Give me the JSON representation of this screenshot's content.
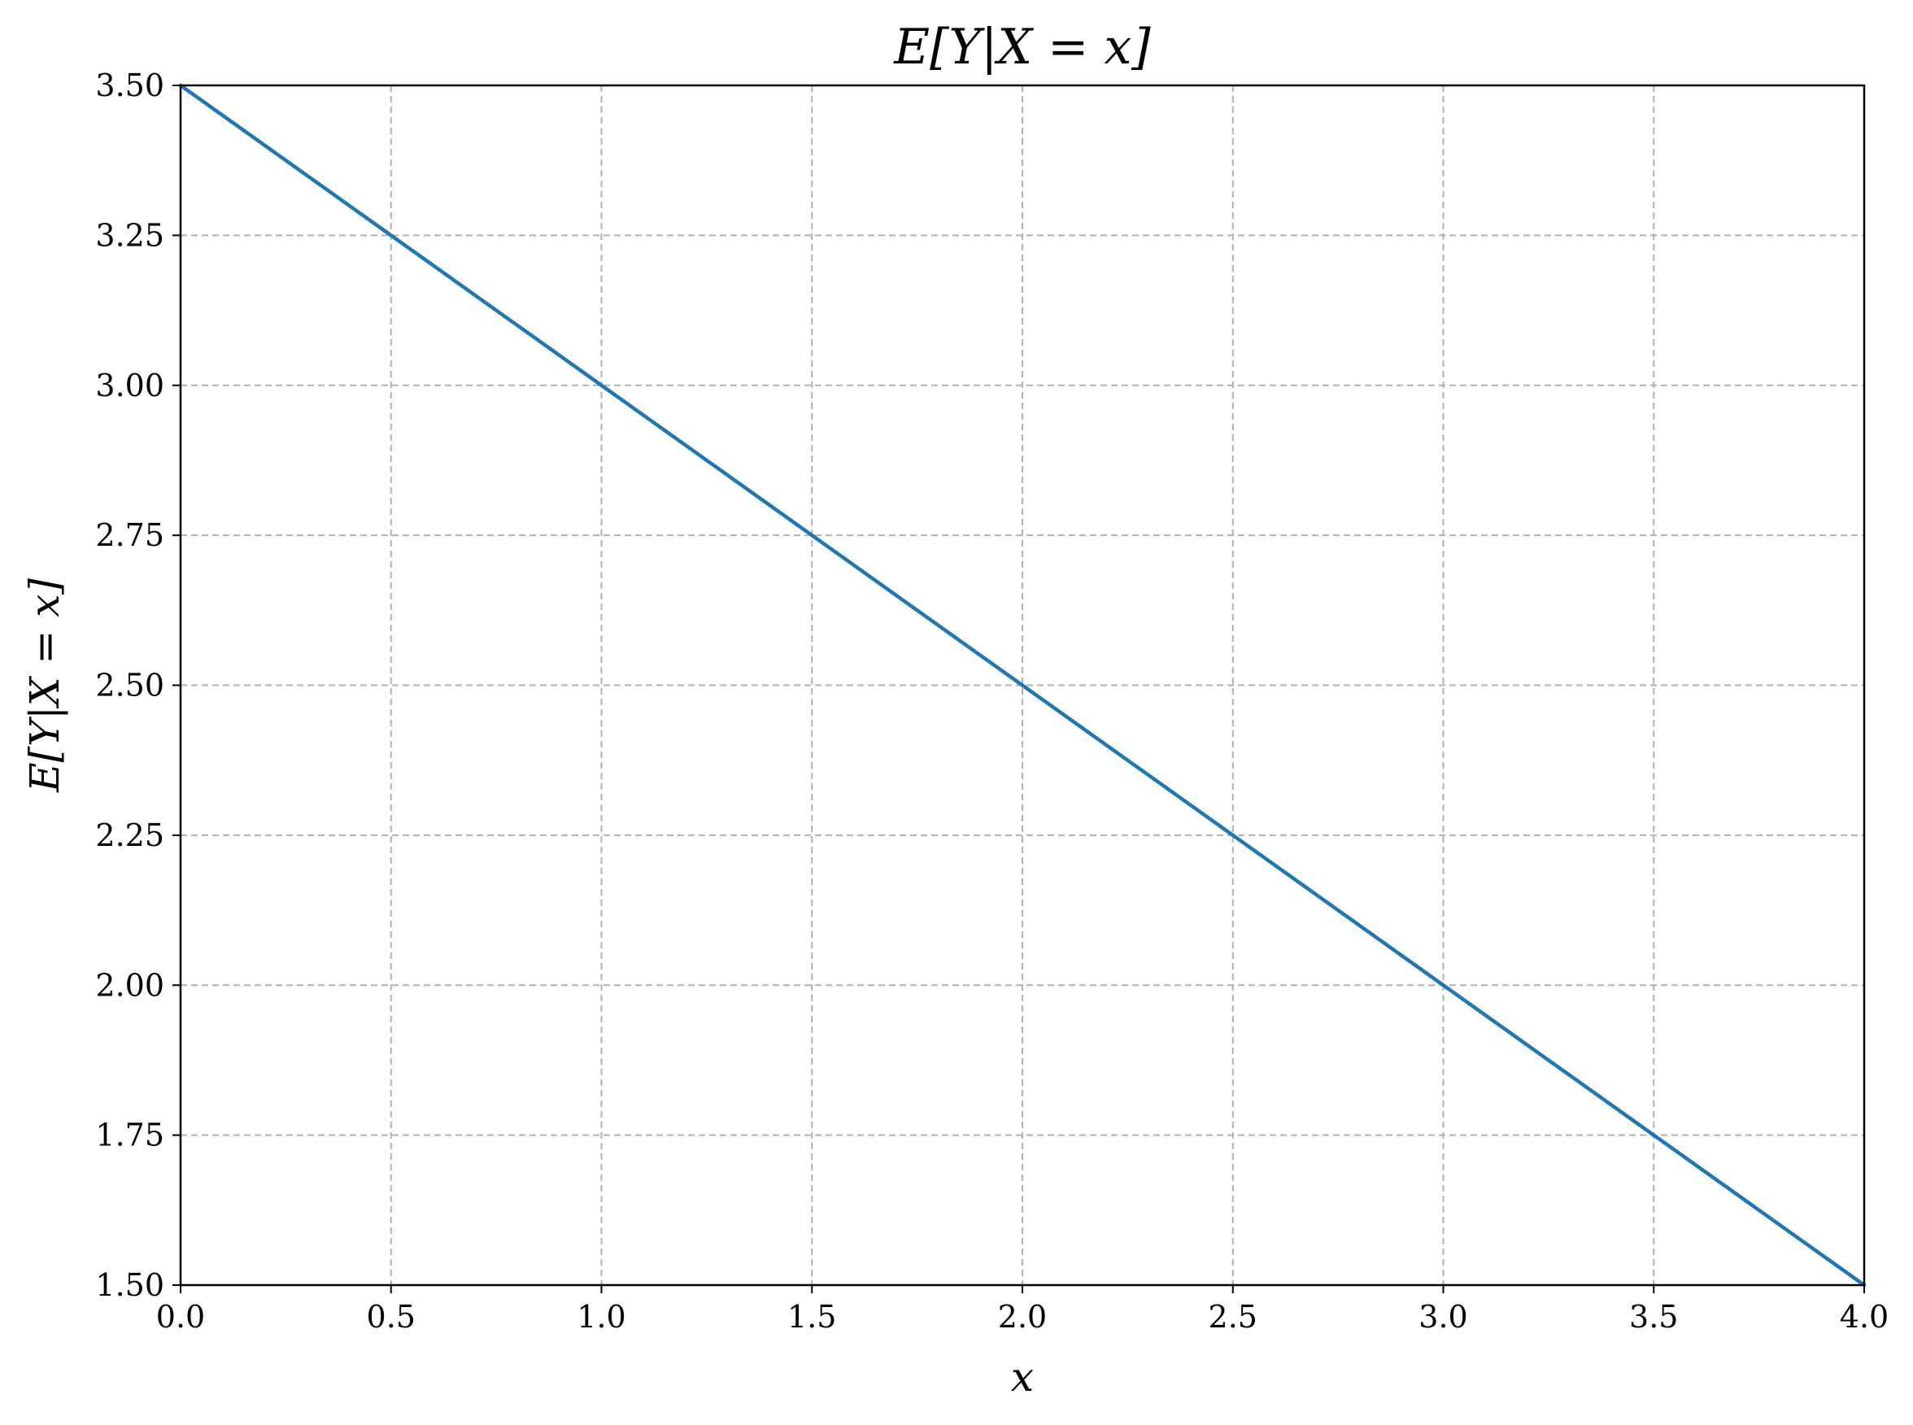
{
  "chart_data": {
    "type": "line",
    "title": "E[Y|X = x]",
    "xlabel": "x",
    "ylabel": "E[Y|X = x]",
    "xlim": [
      0.0,
      4.0
    ],
    "ylim": [
      1.5,
      3.5
    ],
    "xticks": [
      0.0,
      0.5,
      1.0,
      1.5,
      2.0,
      2.5,
      3.0,
      3.5,
      4.0
    ],
    "xtick_labels": [
      "0.0",
      "0.5",
      "1.0",
      "1.5",
      "2.0",
      "2.5",
      "3.0",
      "3.5",
      "4.0"
    ],
    "yticks": [
      1.5,
      1.75,
      2.0,
      2.25,
      2.5,
      2.75,
      3.0,
      3.25,
      3.5
    ],
    "ytick_labels": [
      "1.50",
      "1.75",
      "2.00",
      "2.25",
      "2.50",
      "2.75",
      "3.00",
      "3.25",
      "3.50"
    ],
    "grid": true,
    "series": [
      {
        "x": [
          0.0,
          0.5,
          1.0,
          1.5,
          2.0,
          2.5,
          3.0,
          3.5,
          4.0
        ],
        "y": [
          3.5,
          3.25,
          3.0,
          2.75,
          2.5,
          2.25,
          2.0,
          1.75,
          1.5
        ],
        "color": "#1f77b4"
      }
    ]
  }
}
